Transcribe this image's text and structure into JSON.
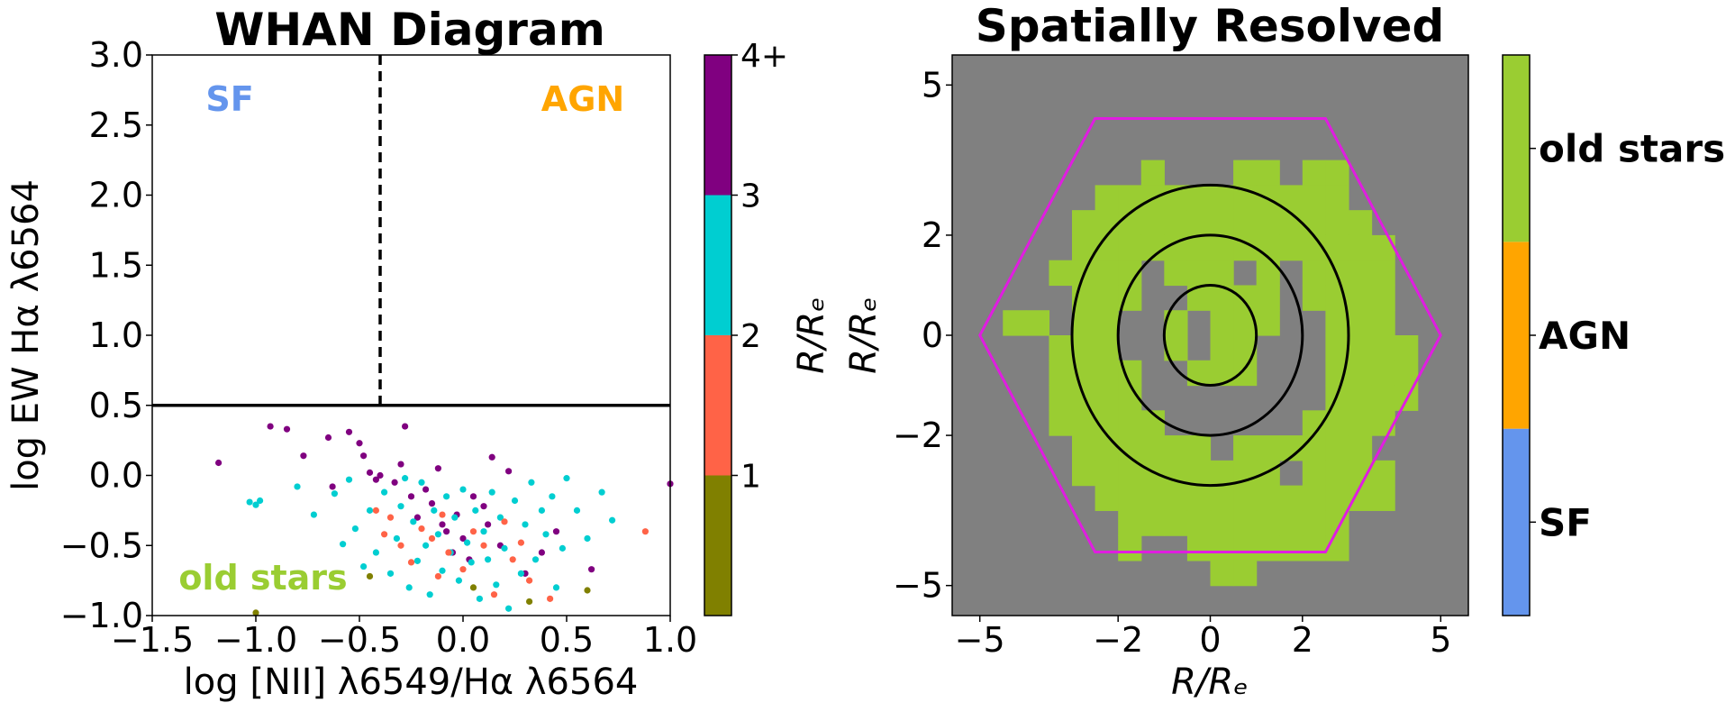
{
  "chart_data": [
    {
      "type": "scatter",
      "title": "WHAN Diagram",
      "xlabel": "log [NII] λ6549/Hα λ6564",
      "ylabel": "log EW Hα λ6564",
      "xlim": [
        -1.5,
        1.0
      ],
      "ylim": [
        -1.0,
        3.0
      ],
      "xticks": [
        "−1.5",
        "−1.0",
        "−0.5",
        "0.0",
        "0.5",
        "1.0"
      ],
      "yticks": [
        "−1.0",
        "−0.5",
        "0.0",
        "0.5",
        "1.0",
        "1.5",
        "2.0",
        "2.5",
        "3.0"
      ],
      "vline_x": -0.4,
      "hline_y": 0.5,
      "region_labels": [
        {
          "text": "SF",
          "color": "#6495ed"
        },
        {
          "text": "AGN",
          "color": "#ffa500"
        },
        {
          "text": "old stars",
          "color": "#9acd32"
        }
      ],
      "colorbar": {
        "label": "R/Rₑ",
        "tick_labels": [
          "1",
          "2",
          "3",
          "4+"
        ],
        "bins": [
          {
            "range": [
              0,
              1
            ],
            "color": "#808000"
          },
          {
            "range": [
              1,
              2
            ],
            "color": "#ff6347"
          },
          {
            "range": [
              2,
              3
            ],
            "color": "#00ced1"
          },
          {
            "range": [
              3,
              4
            ],
            "color": "#800080"
          }
        ]
      },
      "series": [
        {
          "color": "#800080",
          "points": [
            [
              -1.18,
              0.09
            ],
            [
              -0.93,
              0.35
            ],
            [
              -0.85,
              0.33
            ],
            [
              -0.77,
              0.14
            ],
            [
              -0.65,
              0.27
            ],
            [
              -0.63,
              -0.08
            ],
            [
              -0.55,
              0.31
            ],
            [
              -0.5,
              0.23
            ],
            [
              -0.48,
              0.14
            ],
            [
              -0.45,
              0.02
            ],
            [
              -0.42,
              -0.03
            ],
            [
              -0.4,
              0.0
            ],
            [
              -0.33,
              -0.05
            ],
            [
              -0.3,
              0.08
            ],
            [
              -0.28,
              0.35
            ],
            [
              -0.25,
              -0.15
            ],
            [
              -0.22,
              -0.3
            ],
            [
              -0.18,
              -0.1
            ],
            [
              -0.15,
              -0.2
            ],
            [
              -0.12,
              0.05
            ],
            [
              -0.1,
              -0.35
            ],
            [
              -0.08,
              -0.4
            ],
            [
              -0.05,
              -0.55
            ],
            [
              -0.03,
              -0.28
            ],
            [
              0.0,
              -0.45
            ],
            [
              0.03,
              -0.6
            ],
            [
              0.05,
              -0.15
            ],
            [
              0.1,
              -0.22
            ],
            [
              0.12,
              -0.35
            ],
            [
              0.14,
              0.13
            ],
            [
              0.18,
              -0.5
            ],
            [
              0.22,
              0.03
            ],
            [
              0.3,
              -0.7
            ],
            [
              0.38,
              -0.55
            ],
            [
              0.45,
              -0.4
            ],
            [
              0.62,
              -0.67
            ],
            [
              1.0,
              -0.06
            ]
          ]
        },
        {
          "color": "#00ced1",
          "points": [
            [
              -1.03,
              -0.19
            ],
            [
              -1.0,
              -0.21
            ],
            [
              -0.98,
              -0.18
            ],
            [
              -0.8,
              -0.08
            ],
            [
              -0.72,
              -0.28
            ],
            [
              -0.62,
              -0.13
            ],
            [
              -0.58,
              -0.49
            ],
            [
              -0.55,
              -0.03
            ],
            [
              -0.52,
              -0.38
            ],
            [
              -0.48,
              -0.65
            ],
            [
              -0.45,
              -0.25
            ],
            [
              -0.42,
              -0.55
            ],
            [
              -0.38,
              -0.12
            ],
            [
              -0.35,
              -0.7
            ],
            [
              -0.32,
              -0.45
            ],
            [
              -0.3,
              -0.22
            ],
            [
              -0.28,
              -0.02
            ],
            [
              -0.26,
              -0.8
            ],
            [
              -0.24,
              -0.33
            ],
            [
              -0.22,
              -0.61
            ],
            [
              -0.2,
              -0.05
            ],
            [
              -0.18,
              -0.5
            ],
            [
              -0.16,
              -0.85
            ],
            [
              -0.14,
              -0.25
            ],
            [
              -0.12,
              -0.42
            ],
            [
              -0.1,
              -0.68
            ],
            [
              -0.08,
              -0.15
            ],
            [
              -0.06,
              -0.55
            ],
            [
              -0.04,
              -0.3
            ],
            [
              -0.02,
              -0.75
            ],
            [
              0.0,
              -0.1
            ],
            [
              0.02,
              -0.48
            ],
            [
              0.04,
              -0.62
            ],
            [
              0.06,
              -0.25
            ],
            [
              0.08,
              -0.88
            ],
            [
              0.1,
              -0.4
            ],
            [
              0.12,
              -0.6
            ],
            [
              0.14,
              -0.12
            ],
            [
              0.16,
              -0.78
            ],
            [
              0.18,
              -0.3
            ],
            [
              0.2,
              -0.52
            ],
            [
              0.22,
              -0.95
            ],
            [
              0.25,
              -0.18
            ],
            [
              0.28,
              -0.7
            ],
            [
              0.3,
              -0.35
            ],
            [
              0.33,
              -0.05
            ],
            [
              0.35,
              -0.6
            ],
            [
              0.38,
              -0.25
            ],
            [
              0.4,
              -0.42
            ],
            [
              0.43,
              -0.15
            ],
            [
              0.45,
              -0.8
            ],
            [
              0.48,
              -0.52
            ],
            [
              0.5,
              -0.02
            ],
            [
              0.55,
              -0.25
            ],
            [
              0.6,
              -0.45
            ],
            [
              0.67,
              -0.12
            ],
            [
              0.72,
              -0.32
            ]
          ]
        },
        {
          "color": "#ff6347",
          "points": [
            [
              -0.42,
              -0.25
            ],
            [
              -0.38,
              -0.42
            ],
            [
              -0.35,
              -0.3
            ],
            [
              -0.3,
              -0.5
            ],
            [
              -0.25,
              -0.62
            ],
            [
              -0.2,
              -0.38
            ],
            [
              -0.15,
              -0.45
            ],
            [
              -0.12,
              -0.72
            ],
            [
              -0.1,
              -0.28
            ],
            [
              -0.07,
              -0.55
            ],
            [
              0.0,
              -0.67
            ],
            [
              0.05,
              -0.4
            ],
            [
              0.1,
              -0.5
            ],
            [
              0.15,
              -0.85
            ],
            [
              0.2,
              -0.33
            ],
            [
              0.24,
              -0.6
            ],
            [
              0.28,
              -0.48
            ],
            [
              0.32,
              -0.75
            ],
            [
              0.42,
              -0.88
            ],
            [
              0.88,
              -0.4
            ]
          ]
        },
        {
          "color": "#808000",
          "points": [
            [
              -1.0,
              -0.98
            ],
            [
              -0.45,
              -0.72
            ],
            [
              0.05,
              -0.8
            ],
            [
              0.32,
              -0.9
            ],
            [
              0.6,
              -0.82
            ]
          ]
        }
      ]
    },
    {
      "type": "heatmap",
      "title": "Spatially Resolved",
      "xlabel": "R/Rₑ",
      "ylabel": "R/Rₑ",
      "xlim": [
        -5.6,
        5.6
      ],
      "ylim": [
        -5.6,
        5.6
      ],
      "xticks": [
        "−5",
        "−2",
        "0",
        "2",
        "5"
      ],
      "yticks": [
        "−5",
        "−2",
        "0",
        "2",
        "5"
      ],
      "background_color": "#808080",
      "hexagon_color": "#e01de0",
      "ellipse_color": "#000000",
      "ellipses": [
        {
          "a": 1.0,
          "b": 1.0
        },
        {
          "a": 2.0,
          "b": 2.0
        },
        {
          "a": 3.0,
          "b": 3.0
        }
      ],
      "colorbar": {
        "categories": [
          {
            "label": "SF",
            "color": "#6495ed"
          },
          {
            "label": "AGN",
            "color": "#ffa500"
          },
          {
            "label": "old stars",
            "color": "#9acd32"
          }
        ]
      },
      "pixel_size": 0.5,
      "grid_origin": [
        -5.5,
        -5.5
      ],
      "green_rows": [
        "......................",
        "......................",
        "......................",
        "......................",
        "........X...XX.XX.....",
        "......XXXXXXXXXXX.....",
        ".....XXXXXXXXXXXXX....",
        ".....XXXXXXXXXXXXXX...",
        "....XXXX.XXX.X.XXXX...",
        ".....XXX..XXXX.XXXX...",
        "..XX.XX..X.XXX..XXX...",
        "....XXX..X.XX...XXXX..",
        "....XXXX..XXX...XXXX..",
        "....XXXX........XXXX..",
        "....XXXXX......XXXX...",
        ".....XXXXXX.XXXXXX....",
        ".....XXXXXXXXX.XXXX...",
        "......XXXXXXXXXXXXX...",
        ".......XXXXXXXXXX.....",
        ".......X..XXXXXXX.....",
        "...........XX.........",
        "......................"
      ]
    }
  ]
}
